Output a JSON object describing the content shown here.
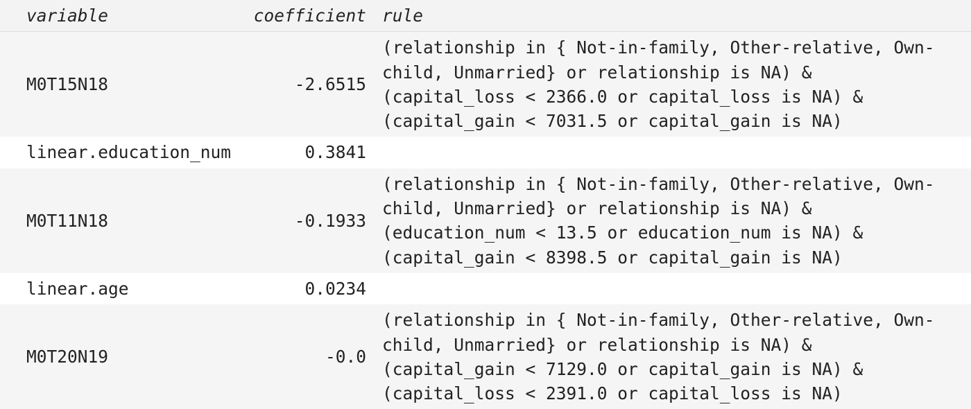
{
  "table": {
    "columns": [
      "variable",
      "coefficient",
      "rule"
    ],
    "rows": [
      [
        "M0T15N18",
        "-2.6515",
        "(relationship in { Not-in-family, Other-relative, Own-child, Unmarried} or relationship is NA) & (capital_loss < 2366.0 or capital_loss is NA) & (capital_gain < 7031.5 or capital_gain is NA)"
      ],
      [
        "linear.education_num",
        "0.3841",
        ""
      ],
      [
        "M0T11N18",
        "-0.1933",
        "(relationship in { Not-in-family, Other-relative, Own-child, Unmarried} or relationship is NA) & (education_num < 13.5 or education_num is NA) & (capital_gain < 8398.5 or capital_gain is NA)"
      ],
      [
        "linear.age",
        "0.0234",
        ""
      ],
      [
        "M0T20N19",
        "-0.0",
        "(relationship in { Not-in-family, Other-relative, Own-child, Unmarried} or relationship is NA) & (capital_gain < 7129.0 or capital_gain is NA) & (capital_loss < 2391.0 or capital_loss is NA)"
      ]
    ]
  }
}
